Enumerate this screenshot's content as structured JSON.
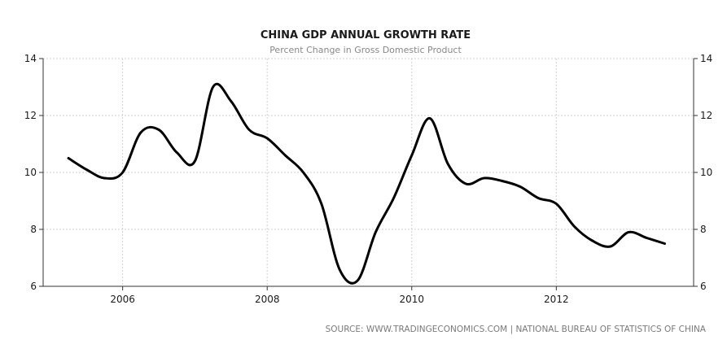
{
  "chart_data": {
    "type": "line",
    "title": "CHINA GDP ANNUAL GROWTH RATE",
    "subtitle": "Percent Change in Gross Domestic Product",
    "source": "SOURCE: WWW.TRADINGECONOMICS.COM | NATIONAL BUREAU OF STATISTICS OF CHINA",
    "xlabel": "",
    "ylabel": "",
    "xlim": [
      2004.9,
      2013.9
    ],
    "ylim": [
      6,
      14
    ],
    "x_ticks": [
      2006,
      2008,
      2010,
      2012
    ],
    "x_tick_labels": [
      "2006",
      "2008",
      "2010",
      "2012"
    ],
    "y_ticks": [
      6,
      8,
      10,
      12,
      14
    ],
    "y_tick_labels": [
      "6",
      "8",
      "10",
      "12",
      "14"
    ],
    "y_axis_sides": "both",
    "grid": true,
    "legend": "none",
    "series": [
      {
        "color": "#000000",
        "x": [
          2005.25,
          2005.5,
          2005.75,
          2006.0,
          2006.25,
          2006.5,
          2006.75,
          2007.0,
          2007.25,
          2007.5,
          2007.75,
          2008.0,
          2008.25,
          2008.5,
          2008.75,
          2009.0,
          2009.25,
          2009.5,
          2009.75,
          2010.0,
          2010.25,
          2010.5,
          2010.75,
          2011.0,
          2011.25,
          2011.5,
          2011.75,
          2012.0,
          2012.25,
          2012.5,
          2012.75,
          2013.0,
          2013.25,
          2013.5
        ],
        "values": [
          10.5,
          10.1,
          9.8,
          10.0,
          11.4,
          11.5,
          10.7,
          10.4,
          13.0,
          12.5,
          11.5,
          11.2,
          10.6,
          10.0,
          8.9,
          6.6,
          6.2,
          7.9,
          9.1,
          10.6,
          11.9,
          10.3,
          9.6,
          9.8,
          9.7,
          9.5,
          9.1,
          8.9,
          8.1,
          7.6,
          7.4,
          7.9,
          7.7,
          7.5
        ]
      }
    ]
  }
}
